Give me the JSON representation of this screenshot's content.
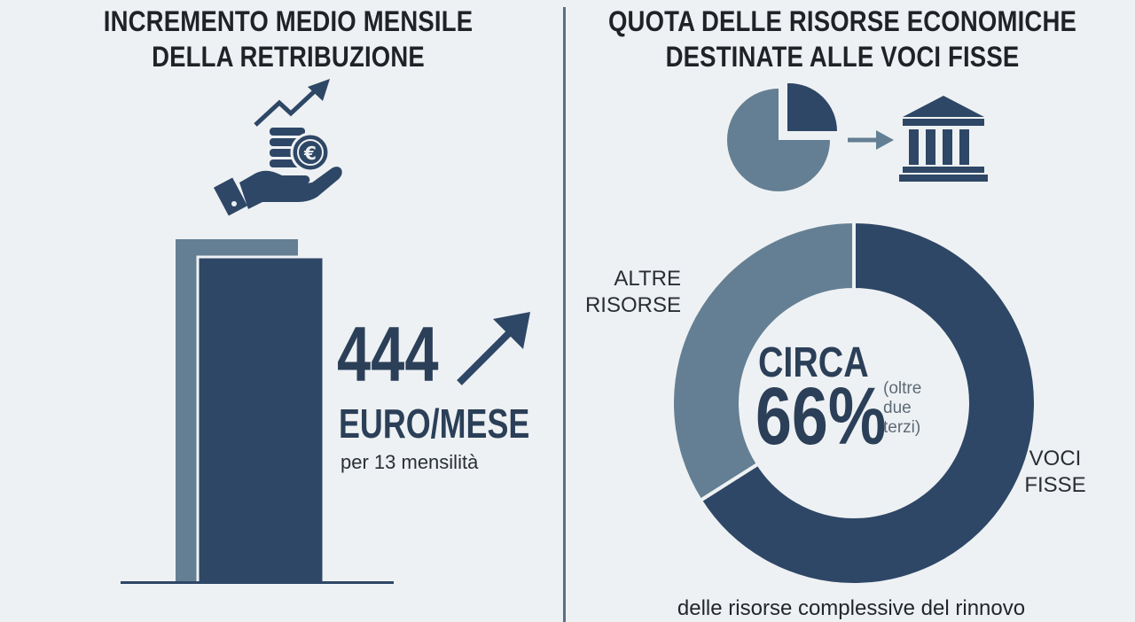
{
  "left_panel": {
    "title_lines": [
      "INCREMENTO MEDIO MENSILE",
      "DELLA RETRIBUZIONE"
    ],
    "amount": "444",
    "unit": "EURO/MESE",
    "note": "per 13 mensilità",
    "icons": [
      "hand-coins-euro-icon",
      "trend-up-arrow-icon",
      "up-arrow-icon"
    ]
  },
  "right_panel": {
    "title_lines": [
      "QUOTA DELLE RISORSE ECONOMICHE",
      "DESTINATE ALLE VOCI FISSE"
    ],
    "circa": "CIRCA",
    "percent_text": "66%",
    "paren_lines": [
      "(oltre",
      "due",
      "terzi)"
    ],
    "footnote": "delle risorse complessive del rinnovo",
    "icons": [
      "pie-chart-icon",
      "right-arrow-icon",
      "bank-building-icon"
    ]
  },
  "chart_data": [
    {
      "type": "bar",
      "categories": [
        ""
      ],
      "values": [
        444
      ],
      "unit": "EURO/MESE"
    },
    {
      "type": "pie",
      "labels": [
        "VOCI FISSE",
        "ALTRE RISORSE"
      ],
      "label_lines": [
        [
          "VOCI",
          "FISSE"
        ],
        [
          "ALTRE",
          "RISORSE"
        ]
      ],
      "values": [
        66,
        34
      ],
      "colors": [
        "#2e4766",
        "#647f93"
      ],
      "donut": true
    }
  ],
  "colors": {
    "dark": "#2e4766",
    "medium": "#647f93",
    "background": "#eef1f3",
    "divider": "#5b6f81"
  }
}
